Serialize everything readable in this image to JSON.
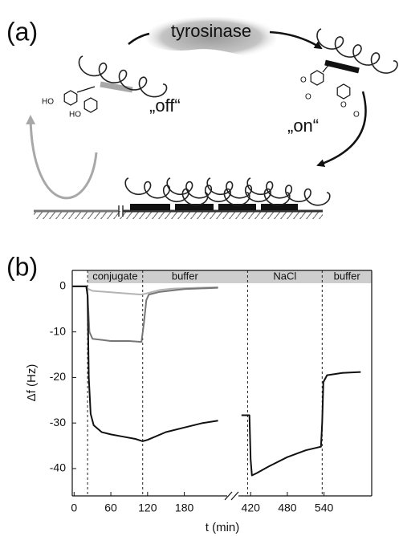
{
  "diagram": {
    "label": "(a)",
    "enzyme": "tyrosinase",
    "off_label": "„off“",
    "on_label": "„on“",
    "substituents_off": [
      "HO",
      "HO"
    ],
    "substituents_on": [
      "O",
      "O",
      "O",
      "O"
    ]
  },
  "chart_data": {
    "type": "line",
    "label": "(b)",
    "xlabel": "t (min)",
    "ylabel": "Δf (Hz)",
    "x_segments": [
      {
        "xlim": [
          -3,
          250
        ],
        "xticks": [
          0,
          60,
          120,
          180
        ]
      },
      {
        "xlim": [
          400,
          618
        ],
        "xticks": [
          420,
          480,
          540
        ]
      }
    ],
    "ylim": [
      -46,
      3.5
    ],
    "yticks": [
      0,
      -10,
      -20,
      -30,
      -40
    ],
    "phases": [
      {
        "label": "conjugate",
        "start": 22,
        "end": 112
      },
      {
        "label": "buffer",
        "start": 112,
        "end": 250
      },
      {
        "label": "NaCl",
        "start": 415,
        "end": 537
      },
      {
        "label": "buffer",
        "start": 537,
        "end": 618
      }
    ],
    "series": [
      {
        "color": "#b4b4b4",
        "x": [
          -3,
          20,
          22,
          30,
          60,
          90,
          110,
          120,
          140,
          160,
          200,
          235
        ],
        "values": [
          0,
          0,
          -0.5,
          -1,
          -1.3,
          -1.6,
          -1.8,
          -1.5,
          -0.8,
          -0.5,
          -0.3,
          -0.2
        ]
      },
      {
        "color": "#767676",
        "x": [
          -3,
          20,
          22,
          25,
          30,
          60,
          90,
          110,
          114,
          118,
          122,
          140,
          180,
          235
        ],
        "values": [
          0,
          0,
          -2,
          -10,
          -11.5,
          -12,
          -12,
          -12.2,
          -8,
          -3,
          -1.8,
          -1.2,
          -0.6,
          -0.3
        ]
      },
      {
        "color": "#111111",
        "x": [
          -3,
          20,
          22,
          24,
          27,
          32,
          45,
          60,
          80,
          100,
          112,
          120,
          150,
          180,
          210,
          235
        ],
        "values": [
          0,
          0,
          -2,
          -20,
          -28,
          -30.5,
          -32,
          -32.5,
          -33,
          -33.5,
          -34,
          -33.7,
          -32,
          -31,
          -30,
          -29.5
        ]
      },
      {
        "color": "#111111",
        "x": [
          405,
          418,
          420,
          422,
          430,
          450,
          480,
          510,
          535,
          537,
          539,
          545,
          570,
          600
        ],
        "values": [
          -28.3,
          -28.3,
          -38,
          -41.5,
          -41,
          -39.5,
          -37.5,
          -36,
          -35.2,
          -30,
          -21,
          -19.5,
          -19,
          -18.8
        ]
      }
    ]
  }
}
